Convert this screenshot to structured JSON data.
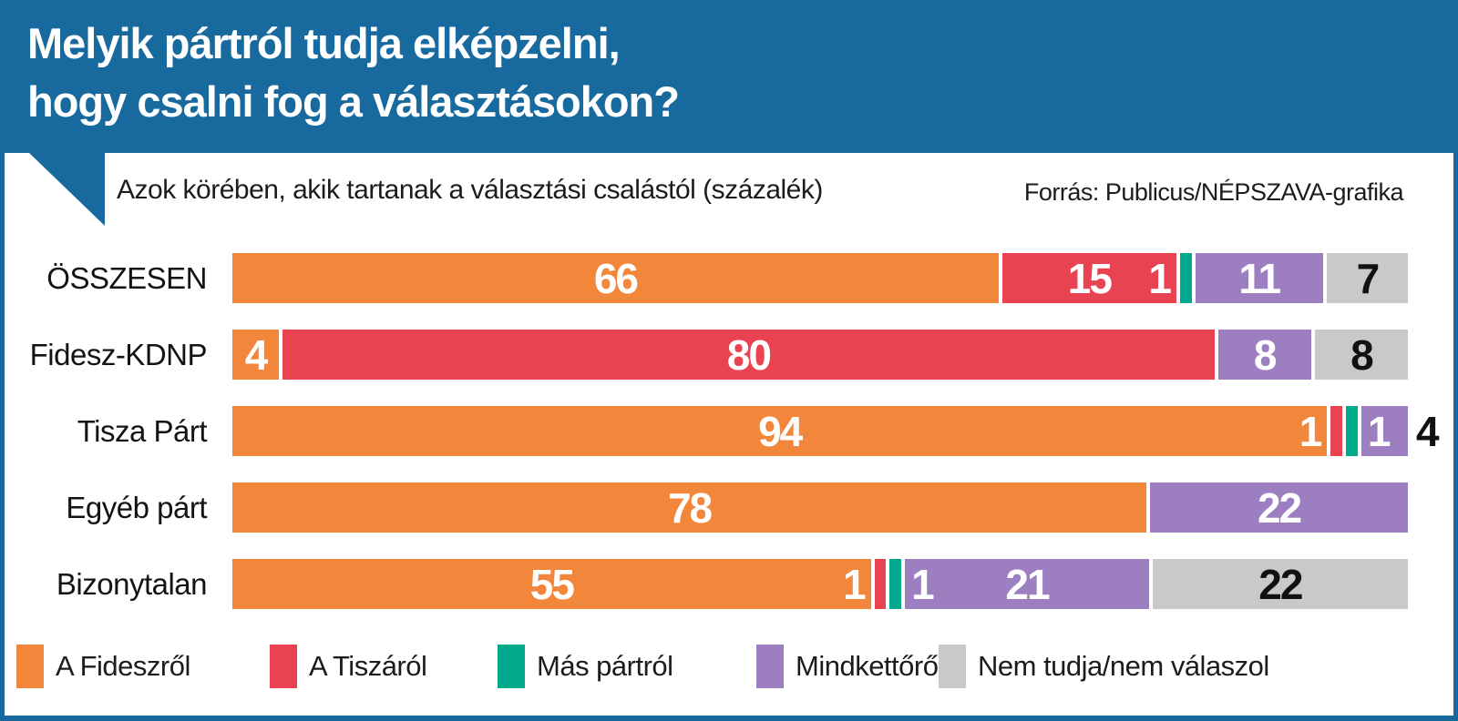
{
  "title": {
    "line1": "Melyik pártról tudja elképzelni,",
    "line2": "hogy csalni fog a választásokon?"
  },
  "subtitle": "Azok körében, akik tartanak a választási csalástól (százalék)",
  "source": "Forrás: Publicus/NÉPSZAVA-grafika",
  "colors": {
    "blue": "#17699E",
    "fidesz": "#F2863A",
    "tisza": "#E94250",
    "mas": "#00A88C",
    "mindketto": "#9C7EC1",
    "nemtudja": "#C9C9C7"
  },
  "legend": [
    {
      "key": "fidesz",
      "label": "A Fideszről"
    },
    {
      "key": "tisza",
      "label": "A Tiszáról"
    },
    {
      "key": "mas",
      "label": "Más pártról"
    },
    {
      "key": "mindketto",
      "label": "Mindkettőről"
    },
    {
      "key": "nemtudja",
      "label": "Nem tudja/nem válaszol"
    }
  ],
  "chart_data": {
    "type": "bar",
    "orientation": "horizontal-stacked",
    "unit": "percent",
    "xlim": [
      0,
      100
    ],
    "title": "Melyik pártról tudja elképzelni, hogy csalni fog a választásokon?",
    "subtitle": "Azok körében, akik tartanak a választási csalástól (százalék)",
    "categories": [
      "ÖSSZESEN",
      "Fidesz-KDNP",
      "Tisza Párt",
      "Egyéb párt",
      "Bizonytalan"
    ],
    "series": [
      {
        "name": "A Fideszről",
        "key": "fidesz",
        "values": [
          66,
          4,
          94,
          78,
          55
        ]
      },
      {
        "name": "A Tiszáról",
        "key": "tisza",
        "values": [
          15,
          80,
          1,
          0,
          1
        ]
      },
      {
        "name": "Más pártról",
        "key": "mas",
        "values": [
          1,
          0,
          1,
          0,
          1
        ]
      },
      {
        "name": "Mindkettőről",
        "key": "mindketto",
        "values": [
          11,
          8,
          4,
          22,
          21
        ]
      },
      {
        "name": "Nem tudja/nem válaszol",
        "key": "nemtudja",
        "values": [
          7,
          8,
          0,
          0,
          22
        ]
      }
    ],
    "rows": [
      {
        "label": "ÖSSZESEN",
        "segments": [
          {
            "key": "fidesz",
            "value": 66,
            "center": "66"
          },
          {
            "key": "tisza",
            "value": 15,
            "center": "15",
            "right": "1"
          },
          {
            "key": "mas",
            "value": 1
          },
          {
            "key": "mindketto",
            "value": 11,
            "center": "11"
          },
          {
            "key": "nemtudja",
            "value": 7,
            "center": "7"
          }
        ]
      },
      {
        "label": "Fidesz-KDNP",
        "segments": [
          {
            "key": "fidesz",
            "value": 4,
            "center": "4"
          },
          {
            "key": "tisza",
            "value": 80,
            "center": "80"
          },
          {
            "key": "mindketto",
            "value": 8,
            "center": "8"
          },
          {
            "key": "nemtudja",
            "value": 8,
            "center": "8"
          }
        ]
      },
      {
        "label": "Tisza Párt",
        "segments": [
          {
            "key": "fidesz",
            "value": 94,
            "center": "94",
            "right": "1"
          },
          {
            "key": "tisza",
            "value": 1
          },
          {
            "key": "mas",
            "value": 1
          },
          {
            "key": "mindketto",
            "value": 4,
            "left": "1",
            "outside": "4"
          }
        ]
      },
      {
        "label": "Egyéb párt",
        "segments": [
          {
            "key": "fidesz",
            "value": 78,
            "center": "78"
          },
          {
            "key": "mindketto",
            "value": 22,
            "center": "22"
          }
        ]
      },
      {
        "label": "Bizonytalan",
        "segments": [
          {
            "key": "fidesz",
            "value": 55,
            "center": "55",
            "right": "1"
          },
          {
            "key": "tisza",
            "value": 1
          },
          {
            "key": "mas",
            "value": 1
          },
          {
            "key": "mindketto",
            "value": 21,
            "left": "1",
            "center": "21"
          },
          {
            "key": "nemtudja",
            "value": 22,
            "center": "22"
          }
        ]
      }
    ]
  }
}
